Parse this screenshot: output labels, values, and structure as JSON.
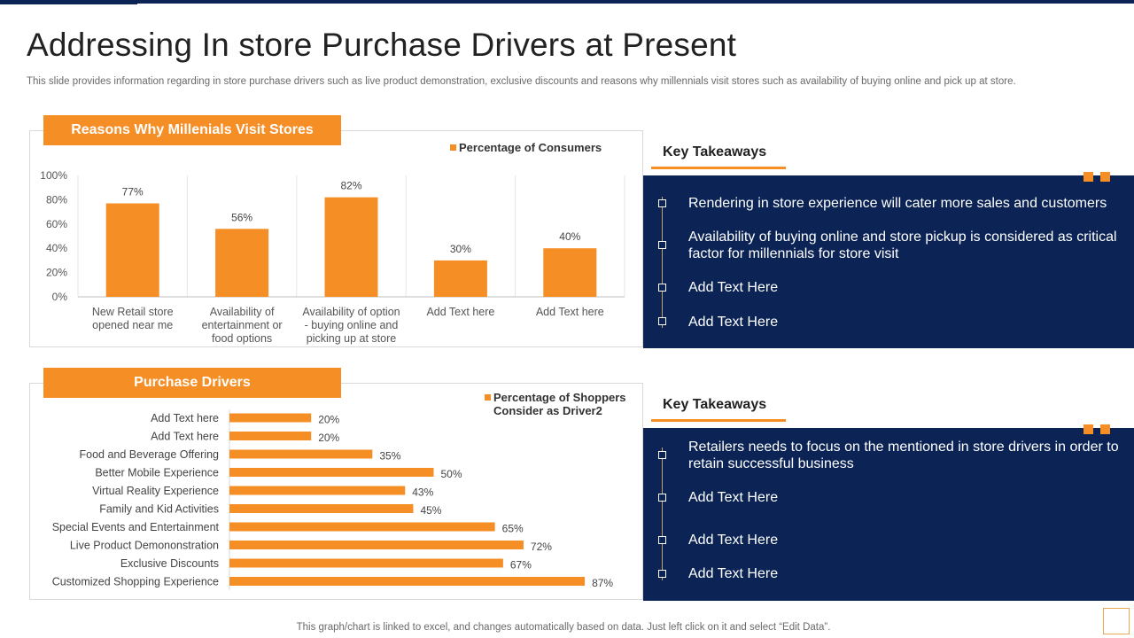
{
  "page": {
    "title": "Addressing In store Purchase Drivers at Present",
    "subtitle": "This slide provides information regarding in store purchase drivers such as live product demonstration, exclusive discounts and reasons why millennials visit stores such as availability of buying online and pick up at store.",
    "footer": "This graph/chart is linked to excel,  and changes automatically based on data. Just left click on it and select “Edit Data”."
  },
  "colors": {
    "accent": "#f68e26",
    "navy": "#0b2455"
  },
  "section1": {
    "header": "Reasons Why Millenials  Visit Stores"
  },
  "section2": {
    "header": "Purchase Drivers"
  },
  "chart_data": [
    {
      "type": "bar",
      "categories": [
        [
          "New Retail store",
          "opened near me"
        ],
        [
          "Availability of",
          "entertainment or",
          "food  options"
        ],
        [
          "Availability of option",
          "- buying online and",
          "picking up at store"
        ],
        [
          "Add Text here"
        ],
        [
          "Add Text here"
        ]
      ],
      "series": [
        {
          "name": "Percentage of Consumers",
          "values": [
            77,
            56,
            82,
            30,
            40
          ]
        }
      ],
      "data_labels": [
        "77%",
        "56%",
        "82%",
        "30%",
        "40%"
      ],
      "ylim": [
        0,
        100
      ],
      "yticks": [
        "0%",
        "20%",
        "40%",
        "60%",
        "80%",
        "100%"
      ],
      "grid": "vertical",
      "legend": "top-right"
    },
    {
      "type": "bar",
      "orientation": "horizontal",
      "categories": [
        "Add Text here",
        "Add Text here",
        "Food and Beverage Offering",
        "Better Mobile Experience",
        "Virtual Reality Experience",
        "Family and Kid Activities",
        "Special Events and Entertainment",
        "Live Product Demononstration",
        "Exclusive Discounts",
        "Customized Shopping Experience"
      ],
      "series": [
        {
          "name": [
            "Percentage of Shoppers",
            "Consider as Driver2"
          ],
          "values": [
            20,
            20,
            35,
            50,
            43,
            45,
            65,
            72,
            67,
            87
          ]
        }
      ],
      "data_labels": [
        "20%",
        "20%",
        "35%",
        "50%",
        "43%",
        "45%",
        "65%",
        "72%",
        "67%",
        "87%"
      ],
      "xlim": [
        0,
        100
      ],
      "legend": "top-right"
    }
  ],
  "takeaways1": {
    "title": "Key Takeaways",
    "items": [
      "Rendering in store experience will cater more sales and customers",
      "Availability of buying  online and store pickup is considered as critical factor for millennials for store visit",
      "Add Text Here",
      "Add Text Here"
    ]
  },
  "takeaways2": {
    "title": "Key Takeaways",
    "items": [
      "Retailers needs to focus on the mentioned in store drivers in order to retain successful business",
      "Add Text Here",
      "Add Text Here",
      "Add Text Here"
    ]
  }
}
